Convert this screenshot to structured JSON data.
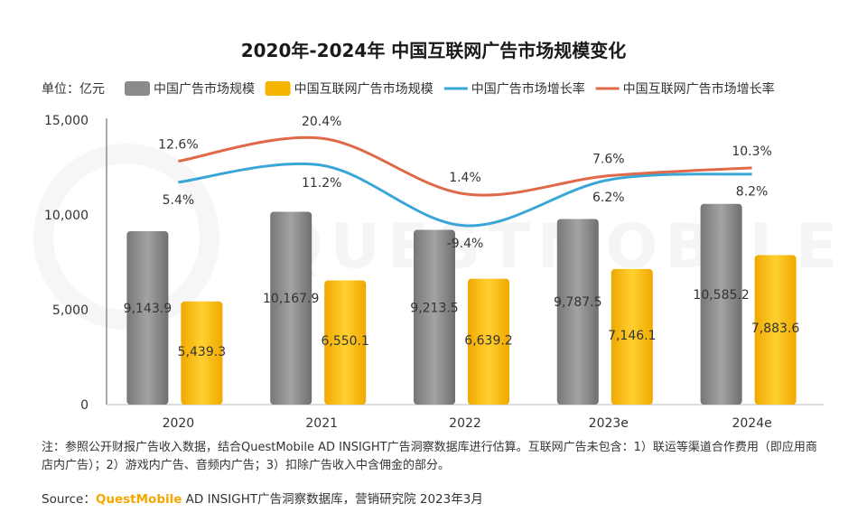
{
  "chart_data": {
    "type": "bar",
    "title": "2020年-2024年 中国互联网广告市场规模变化",
    "unit_label": "单位：亿元",
    "categories": [
      "2020",
      "2021",
      "2022",
      "2023e",
      "2024e"
    ],
    "ylim": [
      0,
      15000
    ],
    "yticks": [
      0,
      5000,
      10000,
      15000
    ],
    "ytick_labels": [
      "0",
      "5,000",
      "10,000",
      "15,000"
    ],
    "series": [
      {
        "name": "中国广告市场规模",
        "kind": "bar",
        "color": "#8a8a8a",
        "values": [
          9143.9,
          10167.9,
          9213.5,
          9787.5,
          10585.2
        ],
        "labels": [
          "9,143.9",
          "10,167.9",
          "9,213.5",
          "9,787.5",
          "10,585.2"
        ]
      },
      {
        "name": "中国互联网广告市场规模",
        "kind": "bar",
        "color": "#f5b400",
        "values": [
          5439.3,
          6550.1,
          6639.2,
          7146.1,
          7883.6
        ],
        "labels": [
          "5,439.3",
          "6,550.1",
          "6,639.2",
          "7,146.1",
          "7,883.6"
        ]
      },
      {
        "name": "中国广告市场增长率",
        "kind": "line",
        "color": "#3aa6d8",
        "values": [
          5.4,
          11.2,
          -9.4,
          6.2,
          8.2
        ],
        "labels": [
          "5.4%",
          "11.2%",
          "-9.4%",
          "6.2%",
          "8.2%"
        ]
      },
      {
        "name": "中国互联网广告市场增长率",
        "kind": "line",
        "color": "#e0694a",
        "values": [
          12.6,
          20.4,
          1.4,
          7.6,
          10.3
        ],
        "labels": [
          "12.6%",
          "20.4%",
          "1.4%",
          "7.6%",
          "10.3%"
        ]
      }
    ],
    "legend_position": "top",
    "grid": false
  },
  "note": "注：参照公开财报广告收入数据，结合QuestMobile AD INSIGHT广告洞察数据库进行估算。互联网广告未包含：1）联运等渠道合作费用（即应用商店内广告）；2）游戏内广告、音频内广告；3）扣除广告收入中含佣金的部分。",
  "source": {
    "prefix": "Source：",
    "brand": "QuestMobile",
    "suffix": " AD INSIGHT广告洞察数据库，营销研究院 2023年3月"
  },
  "watermark": "QUESTMOBILE"
}
